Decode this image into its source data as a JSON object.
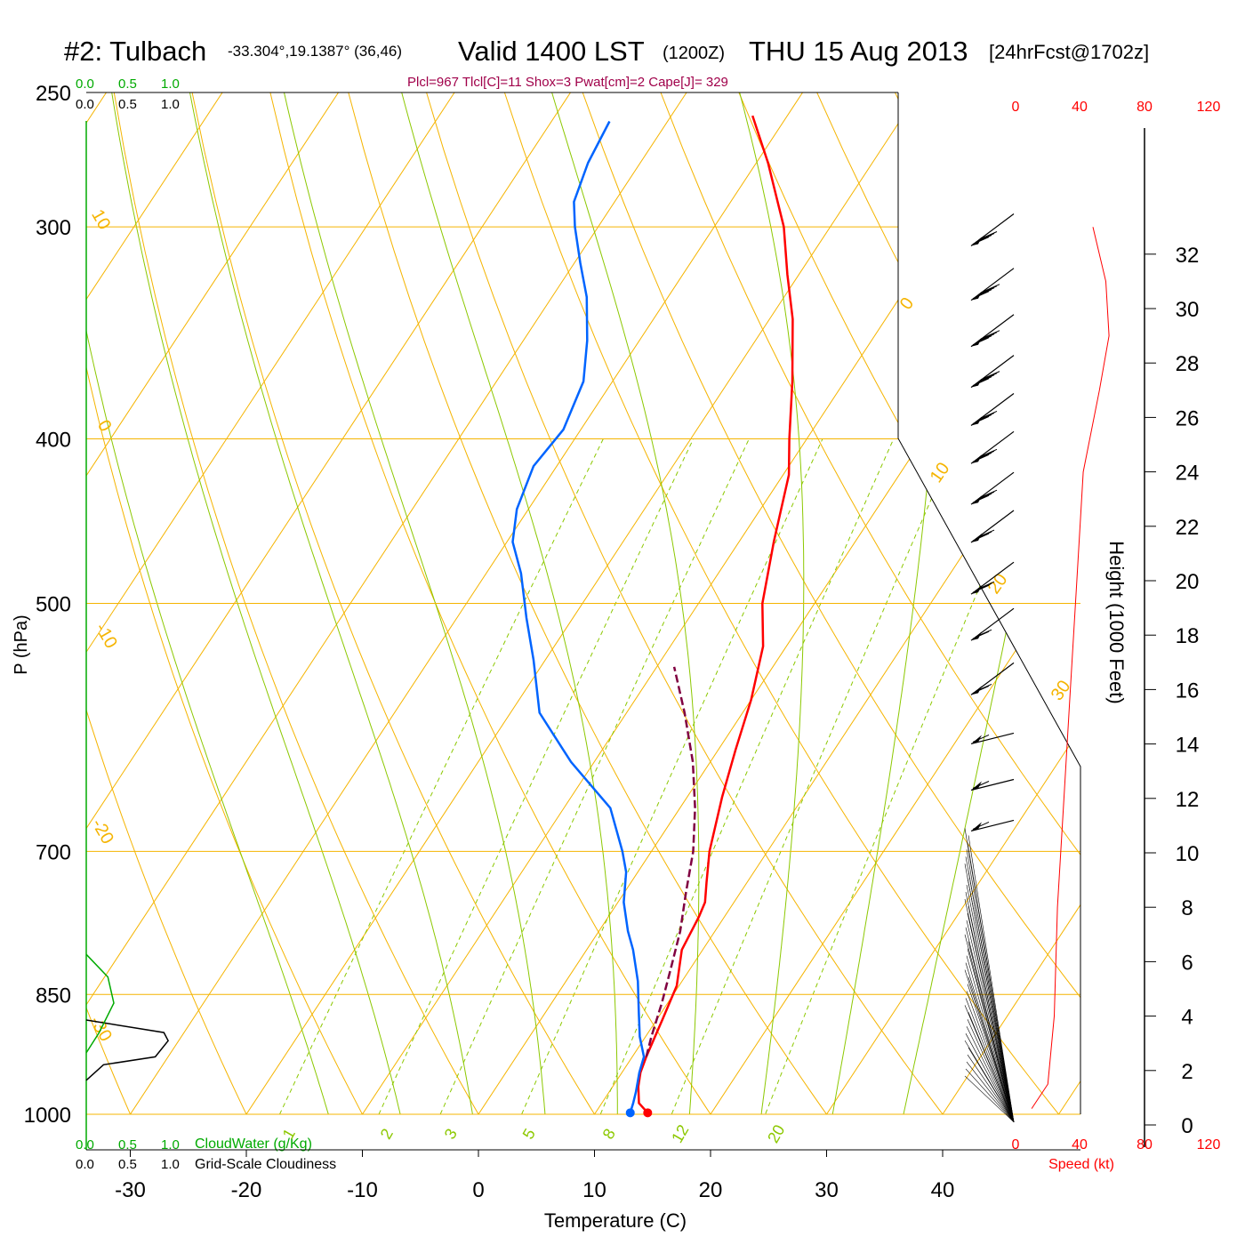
{
  "header": {
    "station": "#2: Tulbach",
    "coords": "-33.304°,19.1387° (36,46)",
    "valid": "Valid 1400 LST",
    "zulu": "(1200Z)",
    "date": "THU 15 Aug 2013",
    "forecast": "[24hrFcst@1702z]",
    "indices": "Plcl=967 Tlcl[C]=11 Shox=3 Pwat[cm]=2 Cape[J]= 329"
  },
  "left_scale": {
    "cloudwater_ticks": [
      "0.0",
      "0.5",
      "1.0"
    ],
    "cloudiness_ticks": [
      "0.0",
      "0.5",
      "1.0"
    ],
    "cloudwater_label": "CloudWater (g/Kg)",
    "cloudiness_label": "Grid-Scale Cloudiness"
  },
  "speed_scale": {
    "ticks": [
      "0",
      "40",
      "80",
      "120"
    ],
    "label": "Speed (kt)"
  },
  "colors": {
    "isobar": "#f5b400",
    "adiabat": "#f5b400",
    "moist_adiabat": "#8cc800",
    "mixing": "#8cc800",
    "temperature": "#ff0000",
    "dewpoint": "#0064ff",
    "parcel": "#800040",
    "cloudwater": "#00aa00",
    "cloudiness": "#000000",
    "indices": "#a0004a",
    "speed": "#ff0000"
  },
  "chart_data": {
    "type": "line",
    "subtype": "skew-t log-p sounding",
    "xlabel": "Temperature (C)",
    "ylabel": "P (hPa)",
    "y2label": "Height (1000 Feet)",
    "xlim": [
      -35,
      50
    ],
    "ylim": [
      1030,
      250
    ],
    "x_ticks": [
      -30,
      -20,
      -10,
      0,
      10,
      20,
      30,
      40
    ],
    "y_ticks": [
      250,
      300,
      400,
      500,
      700,
      850,
      1000
    ],
    "height_ticks": [
      0,
      2,
      4,
      6,
      8,
      10,
      12,
      14,
      16,
      18,
      20,
      22,
      24,
      26,
      28,
      30,
      32
    ],
    "isotherm_labels": [
      "10",
      "0",
      "-10",
      "-20",
      "-30",
      "0",
      "10",
      "20",
      "30"
    ],
    "mixing_ratio_labels": [
      "1",
      "2",
      "3",
      "5",
      "8",
      "12",
      "20"
    ],
    "series": [
      {
        "name": "Temperature",
        "points": [
          [
            14.5,
            998
          ],
          [
            13.2,
            985
          ],
          [
            12.2,
            963
          ],
          [
            11.6,
            945
          ],
          [
            11.2,
            925
          ],
          [
            10.5,
            880
          ],
          [
            9.8,
            840
          ],
          [
            8.2,
            800
          ],
          [
            7.8,
            765
          ],
          [
            7.5,
            750
          ],
          [
            6.5,
            730
          ],
          [
            5.0,
            700
          ],
          [
            3.0,
            650
          ],
          [
            1.5,
            610
          ],
          [
            0.0,
            570
          ],
          [
            -2.0,
            530
          ],
          [
            -4.5,
            500
          ],
          [
            -7.0,
            460
          ],
          [
            -9.5,
            420
          ],
          [
            -11.5,
            400
          ],
          [
            -14.5,
            370
          ],
          [
            -18.0,
            340
          ],
          [
            -21.0,
            320
          ],
          [
            -24.0,
            300
          ],
          [
            -29.0,
            275
          ],
          [
            -33.0,
            258
          ]
        ]
      },
      {
        "name": "Dewpoint",
        "points": [
          [
            13.0,
            998
          ],
          [
            12.7,
            985
          ],
          [
            12.3,
            970
          ],
          [
            11.5,
            945
          ],
          [
            11.0,
            925
          ],
          [
            9.5,
            900
          ],
          [
            8.0,
            870
          ],
          [
            6.2,
            835
          ],
          [
            4.0,
            800
          ],
          [
            2.5,
            780
          ],
          [
            0.5,
            750
          ],
          [
            -1.0,
            720
          ],
          [
            -2.5,
            700
          ],
          [
            -6.0,
            660
          ],
          [
            -12.0,
            620
          ],
          [
            -17.5,
            580
          ],
          [
            -21.0,
            540
          ],
          [
            -24.0,
            510
          ],
          [
            -27.0,
            480
          ],
          [
            -29.5,
            460
          ],
          [
            -31.0,
            440
          ],
          [
            -32.0,
            415
          ],
          [
            -31.5,
            395
          ],
          [
            -32.5,
            370
          ],
          [
            -34.5,
            350
          ],
          [
            -37.0,
            330
          ],
          [
            -39.5,
            315
          ],
          [
            -42.0,
            300
          ],
          [
            -43.5,
            290
          ],
          [
            -44.5,
            275
          ],
          [
            -45.0,
            260
          ]
        ]
      },
      {
        "name": "Parcel",
        "points": [
          [
            11.2,
            925
          ],
          [
            10.5,
            900
          ],
          [
            9.5,
            860
          ],
          [
            8.3,
            820
          ],
          [
            7.0,
            780
          ],
          [
            5.3,
            740
          ],
          [
            3.6,
            700
          ],
          [
            1.3,
            660
          ],
          [
            -1.5,
            620
          ],
          [
            -5.0,
            580
          ],
          [
            -8.5,
            545
          ]
        ]
      },
      {
        "name": "Cloudiness",
        "points": [
          [
            0.0,
            880
          ],
          [
            0.9,
            895
          ],
          [
            0.95,
            905
          ],
          [
            0.8,
            925
          ],
          [
            0.2,
            935
          ],
          [
            0.0,
            955
          ]
        ]
      },
      {
        "name": "Cloudwater",
        "points": [
          [
            0.0,
            805
          ],
          [
            0.25,
            830
          ],
          [
            0.32,
            860
          ],
          [
            0.15,
            895
          ],
          [
            0.0,
            920
          ]
        ]
      },
      {
        "name": "Wind speed (kt)",
        "points": [
          [
            10,
            0.6
          ],
          [
            20,
            1.5
          ],
          [
            24,
            4
          ],
          [
            26,
            8
          ],
          [
            30,
            12
          ],
          [
            34,
            16
          ],
          [
            38,
            20
          ],
          [
            42,
            24
          ],
          [
            52,
            27
          ],
          [
            58,
            29
          ],
          [
            56,
            31
          ],
          [
            48,
            33
          ]
        ]
      }
    ],
    "wind_barbs_kt": [
      {
        "height_kft": 32.5,
        "speed": 35
      },
      {
        "height_kft": 30.5,
        "speed": 45
      },
      {
        "height_kft": 28.8,
        "speed": 45
      },
      {
        "height_kft": 27.3,
        "speed": 45
      },
      {
        "height_kft": 25.9,
        "speed": 40
      },
      {
        "height_kft": 24.5,
        "speed": 40
      },
      {
        "height_kft": 23.0,
        "speed": 35
      },
      {
        "height_kft": 21.6,
        "speed": 30
      },
      {
        "height_kft": 19.7,
        "speed": 25
      },
      {
        "height_kft": 18.0,
        "speed": 20
      },
      {
        "height_kft": 16.0,
        "speed": 15
      },
      {
        "height_kft": 14.2,
        "speed": 10
      },
      {
        "height_kft": 12.5,
        "speed": 10
      },
      {
        "height_kft": 11.0,
        "speed": 10
      }
    ]
  }
}
